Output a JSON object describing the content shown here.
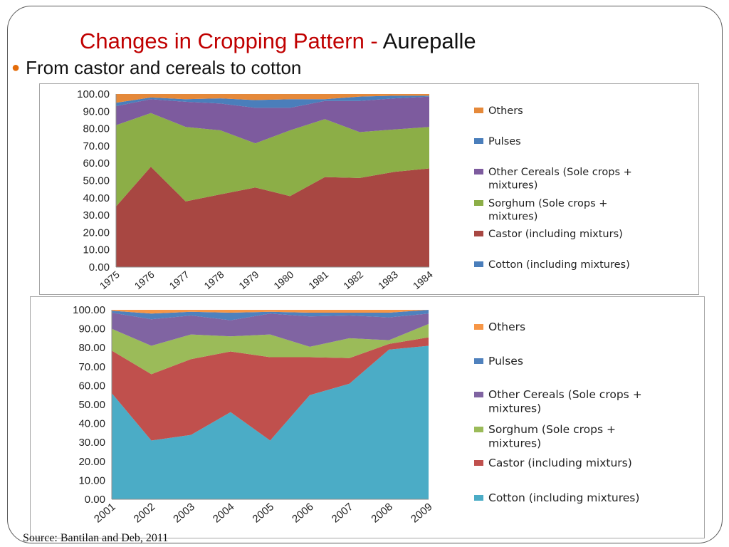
{
  "slide": {
    "title_main": "Changes in Cropping Pattern - ",
    "title_place": "Aurepalle",
    "bullet": "From castor and cereals to cotton",
    "source": "Source: Bantilan and Deb, 2011"
  },
  "colors": {
    "Others": "#e5893a",
    "Pulses": "#4a7ebb",
    "Other Cereals": "#7d5b9e",
    "Sorghum": "#8cae47",
    "Castor": "#a84742",
    "Cotton": "#4bacc6"
  },
  "chart_data": [
    {
      "type": "area",
      "stacked": true,
      "categories": [
        "1975",
        "1976",
        "1977",
        "1978",
        "1979",
        "1980",
        "1981",
        "1982",
        "1983",
        "1984"
      ],
      "ylim": [
        0,
        100
      ],
      "ytick_labels": [
        "0.00",
        "10.00",
        "20.00",
        "30.00",
        "40.00",
        "50.00",
        "60.00",
        "70.00",
        "80.00",
        "90.00",
        "100.00"
      ],
      "legend_position": "right",
      "legend": [
        {
          "name": "Others",
          "color": "#e5893a"
        },
        {
          "name": "Pulses",
          "color": "#4a7ebb"
        },
        {
          "name": "Other Cereals (Sole crops + mixtures)",
          "color": "#7d5b9e"
        },
        {
          "name": "Sorghum (Sole crops + mixtures)",
          "color": "#8cae47"
        },
        {
          "name": "Castor (including mixturs)",
          "color": "#a84742"
        },
        {
          "name": "Cotton (including mixtures)",
          "color": "#4a7ebb"
        }
      ],
      "series": [
        {
          "name": "Cotton (including mixtures)",
          "color": "#4a7ebb",
          "values": [
            0,
            0,
            0,
            0,
            0,
            0,
            0,
            0,
            0,
            0
          ]
        },
        {
          "name": "Castor (including mixturs)",
          "color": "#a84742",
          "values": [
            35,
            58,
            38,
            42,
            46,
            41,
            52,
            51.5,
            55,
            57
          ]
        },
        {
          "name": "Sorghum (Sole crops + mixtures)",
          "color": "#8cae47",
          "values": [
            47,
            31,
            43,
            37,
            25.5,
            38,
            33.5,
            26.5,
            24.5,
            24
          ]
        },
        {
          "name": "Other Cereals (Sole crops + mixtures)",
          "color": "#7d5b9e",
          "values": [
            11,
            8,
            14.5,
            15.5,
            20.5,
            13,
            10.5,
            18,
            18,
            17.5
          ]
        },
        {
          "name": "Pulses",
          "color": "#4a7ebb",
          "values": [
            2,
            1,
            1.5,
            3,
            4.5,
            5,
            1,
            2.5,
            1.5,
            0.5
          ]
        },
        {
          "name": "Others",
          "color": "#e5893a",
          "values": [
            5,
            2,
            3,
            2.5,
            3.5,
            3,
            3,
            1.5,
            1,
            1
          ]
        }
      ]
    },
    {
      "type": "area",
      "stacked": true,
      "categories": [
        "2001",
        "2002",
        "2003",
        "2004",
        "2005",
        "2006",
        "2007",
        "2008",
        "2009"
      ],
      "ylim": [
        0,
        100
      ],
      "ytick_labels": [
        "0.00",
        "10.00",
        "20.00",
        "30.00",
        "40.00",
        "50.00",
        "60.00",
        "70.00",
        "80.00",
        "90.00",
        "100.00"
      ],
      "legend_position": "right",
      "legend": [
        {
          "name": "Others",
          "color": "#f79646"
        },
        {
          "name": "Pulses",
          "color": "#4f81bd"
        },
        {
          "name": "Other Cereals (Sole crops + mixtures)",
          "color": "#8064a2"
        },
        {
          "name": "Sorghum (Sole crops + mixtures)",
          "color": "#9bbb59"
        },
        {
          "name": "Castor (including mixturs)",
          "color": "#c0504d"
        },
        {
          "name": "Cotton (including mixtures)",
          "color": "#4bacc6"
        }
      ],
      "series": [
        {
          "name": "Cotton (including mixtures)",
          "color": "#4bacc6",
          "values": [
            56,
            31,
            34,
            46,
            31,
            55,
            61,
            79,
            81
          ]
        },
        {
          "name": "Castor (including mixturs)",
          "color": "#c0504d",
          "values": [
            22.5,
            35,
            40,
            32,
            44,
            20,
            13.5,
            3,
            4.5
          ]
        },
        {
          "name": "Sorghum (Sole crops + mixtures)",
          "color": "#9bbb59",
          "values": [
            11.5,
            15,
            13,
            8,
            12,
            5.5,
            10.5,
            2,
            7
          ]
        },
        {
          "name": "Other Cereals (Sole crops + mixtures)",
          "color": "#8064a2",
          "values": [
            8.5,
            14,
            10,
            8.5,
            11,
            16,
            12,
            12,
            5.5
          ]
        },
        {
          "name": "Pulses",
          "color": "#4f81bd",
          "values": [
            1,
            3,
            2,
            4,
            1,
            2,
            1.5,
            2.5,
            2
          ]
        },
        {
          "name": "Others",
          "color": "#f79646",
          "values": [
            0.5,
            2,
            1,
            1.5,
            1,
            1.5,
            1.5,
            1.5,
            0
          ]
        }
      ]
    }
  ]
}
